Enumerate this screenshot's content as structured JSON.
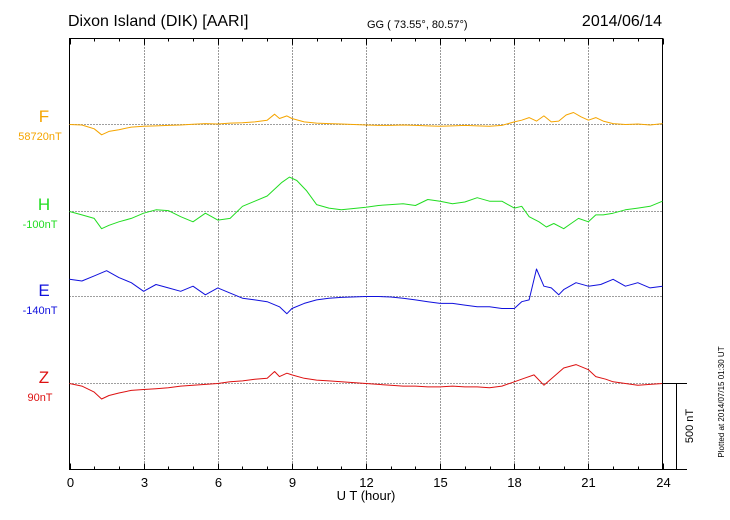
{
  "header": {
    "title": "Dixon Island (DIK)  [AARI]",
    "coords": "GG ( 73.55°,  80.57°)",
    "date": "2014/06/14"
  },
  "plotted_note": "Plotted at 2014/07/15 01:30 UT",
  "chart_data": {
    "type": "line",
    "xlabel": "U T (hour)",
    "xlim": [
      0,
      24
    ],
    "x_ticks": [
      "0",
      "3",
      "6",
      "9",
      "12",
      "15",
      "18",
      "21",
      "24"
    ],
    "grid": "dotted vertical lines every 3 hours",
    "scale_bar_label": "500 nT",
    "scale_bar_nT": 500,
    "series": [
      {
        "name": "F",
        "baseline": "58720nT",
        "color": "#f5a500",
        "x": [
          0,
          0.5,
          1,
          1.3,
          1.6,
          2,
          2.5,
          3,
          3.5,
          4,
          4.5,
          5,
          5.5,
          6,
          6.5,
          7,
          7.5,
          8,
          8.3,
          8.5,
          8.8,
          9,
          9.5,
          10,
          10.5,
          11,
          11.5,
          12,
          12.5,
          13,
          13.5,
          14,
          14.5,
          15,
          15.5,
          16,
          16.5,
          17,
          17.5,
          18,
          18.3,
          18.6,
          18.9,
          19.2,
          19.5,
          19.8,
          20.1,
          20.4,
          20.7,
          21,
          21.3,
          21.6,
          22,
          22.5,
          23,
          23.5,
          24
        ],
        "y": [
          0,
          -3,
          -25,
          -60,
          -40,
          -30,
          -15,
          -10,
          -8,
          -5,
          -3,
          2,
          5,
          3,
          8,
          10,
          15,
          25,
          60,
          35,
          50,
          35,
          15,
          8,
          5,
          3,
          0,
          -3,
          -5,
          -5,
          -3,
          -5,
          -8,
          -10,
          -8,
          -5,
          -8,
          -10,
          -5,
          15,
          25,
          40,
          20,
          50,
          15,
          20,
          55,
          70,
          45,
          25,
          40,
          20,
          5,
          0,
          3,
          -3,
          5
        ]
      },
      {
        "name": "H",
        "baseline": "-100nT",
        "color": "#22dd22",
        "x": [
          0,
          0.5,
          1,
          1.3,
          1.6,
          2,
          2.5,
          3,
          3.5,
          4,
          4.5,
          5,
          5.5,
          6,
          6.5,
          7,
          7.5,
          8,
          8.3,
          8.6,
          8.9,
          9.2,
          9.6,
          10,
          10.5,
          11,
          12,
          12.5,
          13,
          13.5,
          14,
          14.5,
          15,
          15.5,
          16,
          16.5,
          17,
          17.5,
          18,
          18.3,
          18.6,
          19,
          19.3,
          19.6,
          20,
          20.3,
          20.6,
          21,
          21.3,
          21.6,
          22,
          22.5,
          23,
          23.5,
          24
        ],
        "y": [
          0,
          -20,
          -40,
          -100,
          -80,
          -60,
          -40,
          -10,
          10,
          5,
          -30,
          -60,
          -10,
          -50,
          -40,
          30,
          60,
          90,
          130,
          170,
          200,
          180,
          120,
          40,
          20,
          10,
          25,
          35,
          40,
          45,
          35,
          70,
          60,
          45,
          55,
          80,
          60,
          60,
          20,
          30,
          -30,
          -60,
          -90,
          -70,
          -100,
          -70,
          -40,
          -60,
          -20,
          -20,
          -10,
          10,
          20,
          30,
          60
        ]
      },
      {
        "name": "E",
        "baseline": "-140nT",
        "color": "#1010dd",
        "x": [
          0,
          0.5,
          1,
          1.5,
          2,
          2.5,
          3,
          3.5,
          4,
          4.5,
          5,
          5.5,
          6,
          6.5,
          7,
          7.5,
          8,
          8.5,
          8.8,
          9,
          9.5,
          10,
          10.5,
          11,
          12,
          12.5,
          13,
          13.5,
          14,
          14.5,
          15,
          15.5,
          16,
          16.5,
          17,
          17.5,
          18,
          18.3,
          18.6,
          18.9,
          19.2,
          19.5,
          19.8,
          20,
          20.5,
          21,
          21.5,
          22,
          22.5,
          23,
          23.5,
          24
        ],
        "y": [
          100,
          90,
          120,
          150,
          110,
          80,
          30,
          70,
          50,
          30,
          60,
          10,
          50,
          20,
          -10,
          -20,
          -30,
          -60,
          -100,
          -70,
          -40,
          -20,
          -10,
          -5,
          0,
          0,
          -3,
          -10,
          -20,
          -30,
          -40,
          -40,
          -50,
          -60,
          -60,
          -70,
          -70,
          -30,
          -20,
          160,
          60,
          50,
          10,
          40,
          80,
          60,
          70,
          100,
          60,
          80,
          50,
          60
        ]
      },
      {
        "name": "Z",
        "baseline": "90nT",
        "color": "#dd1111",
        "x": [
          0,
          0.5,
          1,
          1.3,
          1.6,
          2,
          2.5,
          3,
          3.5,
          4,
          4.5,
          5,
          5.5,
          6,
          6.5,
          7,
          7.5,
          8,
          8.3,
          8.5,
          8.8,
          9,
          9.5,
          10,
          10.5,
          11,
          11.5,
          12,
          12.5,
          13,
          13.5,
          14,
          14.5,
          15,
          15.5,
          16,
          16.5,
          17,
          17.5,
          18,
          18.4,
          18.8,
          19.2,
          19.6,
          20,
          20.5,
          21,
          21.3,
          21.7,
          22,
          22.5,
          23,
          23.5,
          24
        ],
        "y": [
          0,
          -15,
          -50,
          -90,
          -70,
          -55,
          -40,
          -35,
          -30,
          -25,
          -15,
          -10,
          -5,
          0,
          10,
          15,
          25,
          30,
          70,
          40,
          60,
          50,
          30,
          20,
          15,
          10,
          5,
          0,
          -5,
          -10,
          -15,
          -15,
          -20,
          -20,
          -15,
          -20,
          -20,
          -25,
          -15,
          10,
          30,
          50,
          -10,
          40,
          90,
          110,
          80,
          40,
          25,
          10,
          0,
          -10,
          -5,
          0
        ]
      }
    ]
  }
}
